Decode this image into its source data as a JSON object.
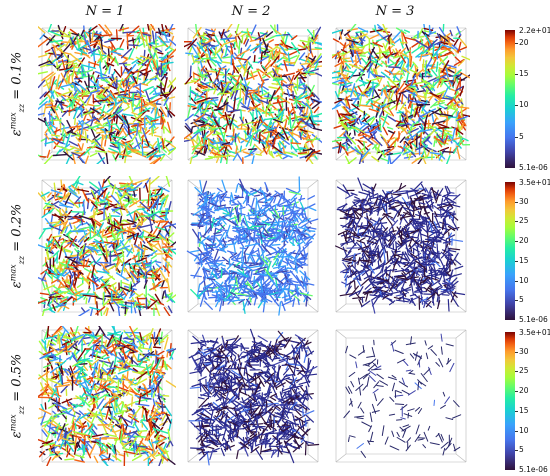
{
  "columns": [
    "N = 1",
    "N = 2",
    "N = 3"
  ],
  "rows": [
    {
      "label_main": "ε",
      "label_sup": "max",
      "label_sub": "zz",
      "label_val": " = 0.1%"
    },
    {
      "label_main": "ε",
      "label_sup": "max",
      "label_sub": "zz",
      "label_val": " = 0.2%"
    },
    {
      "label_main": "ε",
      "label_sup": "max",
      "label_sub": "zz",
      "label_val": " = 0.5%"
    }
  ],
  "colorbars": [
    {
      "max_label": "2.2e+01",
      "min_label": "5.1e-06",
      "ticks": [
        "20",
        "15",
        "10",
        "5"
      ],
      "tick_values": [
        20,
        15,
        10,
        5
      ],
      "max": 22
    },
    {
      "max_label": "3.5e+01",
      "min_label": "5.1e-06",
      "ticks": [
        "30",
        "25",
        "20",
        "15",
        "10",
        "5"
      ],
      "tick_values": [
        30,
        25,
        20,
        15,
        10,
        5
      ],
      "max": 35
    },
    {
      "max_label": "3.5e+01",
      "min_label": "5.1e-06",
      "ticks": [
        "30",
        "25",
        "20",
        "15",
        "10",
        "5"
      ],
      "tick_values": [
        30,
        25,
        20,
        15,
        10,
        5
      ],
      "max": 35
    }
  ],
  "panels": [
    [
      "full",
      "full",
      "full"
    ],
    [
      "full",
      "blue",
      "dark"
    ],
    [
      "full",
      "dark",
      "sparse"
    ]
  ]
}
